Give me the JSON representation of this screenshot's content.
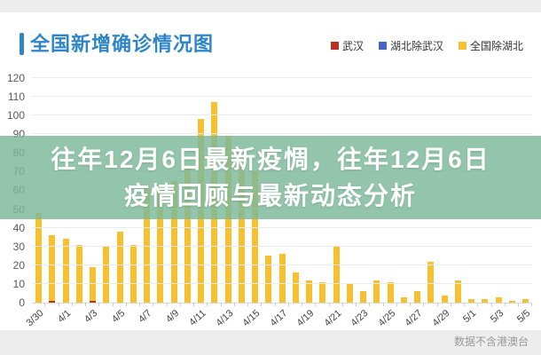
{
  "header": {
    "accent_color": "#2e86c8"
  },
  "overlay": {
    "line1": "往年12月6日最新疫惆，往年12月6日",
    "line2": "疫情回顾与最新动态分析",
    "bg_rgba": "rgba(122,184,153,0.82)"
  },
  "footer": {
    "note": "数据不含港澳台"
  },
  "chart_data": {
    "type": "bar",
    "stacked": true,
    "title": "全国新增确诊情况图",
    "title_color": "#2e86c8",
    "xlabel": "",
    "ylabel": "",
    "ylim": [
      0,
      120
    ],
    "ytick_step": 10,
    "grid": true,
    "legend_position": "top-right",
    "x_label_every": 2,
    "x": [
      "3/30",
      "3/31",
      "4/1",
      "4/2",
      "4/3",
      "4/4",
      "4/5",
      "4/6",
      "4/7",
      "4/8",
      "4/9",
      "4/10",
      "4/11",
      "4/12",
      "4/13",
      "4/14",
      "4/15",
      "4/16",
      "4/17",
      "4/18",
      "4/19",
      "4/20",
      "4/21",
      "4/22",
      "4/23",
      "4/24",
      "4/25",
      "4/26",
      "4/27",
      "4/28",
      "4/29",
      "4/30",
      "5/1",
      "5/2",
      "5/3",
      "5/4",
      "5/5"
    ],
    "series": [
      {
        "name": "武汉",
        "color": "#b8321f",
        "values": [
          0,
          1,
          0,
          0,
          1,
          0,
          0,
          0,
          0,
          0,
          0,
          0,
          0,
          0,
          0,
          0,
          0,
          0,
          0,
          0,
          0,
          0,
          0,
          0,
          0,
          0,
          0,
          0,
          0,
          0,
          0,
          0,
          0,
          0,
          0,
          0,
          0
        ]
      },
      {
        "name": "湖北除武汉",
        "color": "#4565c8",
        "values": [
          0,
          0,
          0,
          0,
          0,
          0,
          0,
          0,
          0,
          0,
          0,
          0,
          0,
          0,
          0,
          0,
          0,
          0,
          0,
          0,
          0,
          0,
          0,
          0,
          0,
          0,
          0,
          0,
          0,
          0,
          0,
          0,
          0,
          0,
          0,
          0,
          0
        ]
      },
      {
        "name": "全国除湖北",
        "color": "#f6c02e",
        "values": [
          48,
          35,
          34,
          31,
          18,
          30,
          38,
          31,
          62,
          63,
          65,
          72,
          98,
          107,
          89,
          75,
          70,
          25,
          26,
          16,
          12,
          11,
          30,
          10,
          6,
          12,
          11,
          3,
          6,
          22,
          4,
          12,
          2,
          2,
          3,
          1,
          2
        ]
      }
    ]
  }
}
